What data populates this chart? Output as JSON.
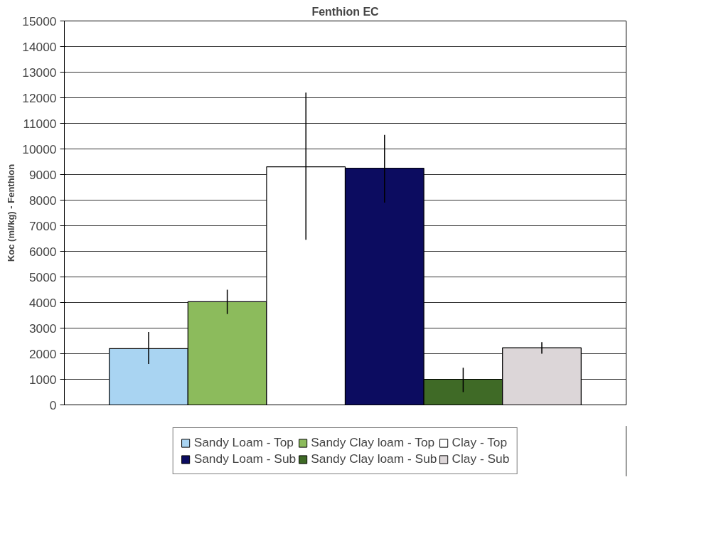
{
  "chart_data": {
    "type": "bar",
    "title": "Fenthion EC",
    "ylabel": "Koc (ml/kg) - Fenthion",
    "categories": [
      null
    ],
    "series": [
      {
        "name": "Sandy Loam - Top",
        "color": "#a9d4f2",
        "values": [
          2200
        ],
        "errors": [
          [
            1600,
            2850
          ]
        ]
      },
      {
        "name": "Sandy Clay loam - Top",
        "color": "#8cbb5c",
        "values": [
          4030
        ],
        "errors": [
          [
            3550,
            4500
          ]
        ]
      },
      {
        "name": "Clay - Top",
        "color": "#ffffff",
        "values": [
          9300
        ],
        "errors": [
          [
            6450,
            12200
          ]
        ]
      },
      {
        "name": "Sandy Loam - Sub",
        "color": "#0c0c60",
        "values": [
          9250
        ],
        "errors": [
          [
            7900,
            10550
          ]
        ]
      },
      {
        "name": "Sandy Clay loam - Sub",
        "color": "#3f6a26",
        "values": [
          1000
        ],
        "errors": [
          [
            500,
            1450
          ]
        ]
      },
      {
        "name": "Clay - Sub",
        "color": "#dcd6d8",
        "values": [
          2230
        ],
        "errors": [
          [
            2000,
            2450
          ]
        ]
      }
    ],
    "ylim": [
      0,
      15000
    ],
    "yticks": [
      0,
      1000,
      2000,
      3000,
      4000,
      5000,
      6000,
      7000,
      8000,
      9000,
      10000,
      11000,
      12000,
      13000,
      14000,
      15000
    ],
    "grid": "y",
    "legend": "bottom"
  }
}
